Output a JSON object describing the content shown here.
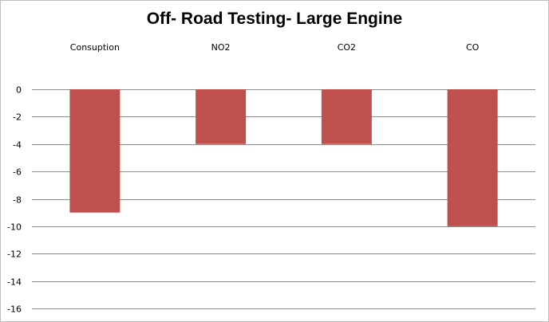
{
  "chart_data": {
    "type": "bar",
    "title": "Off- Road Testing- Large Engine",
    "xlabel": "",
    "ylabel": "",
    "categories": [
      "Consuption",
      "NO2",
      "CO2",
      "CO"
    ],
    "values": [
      -9,
      -4,
      -4,
      -10
    ],
    "ylim": [
      -16,
      0
    ],
    "yticks": [
      "0",
      "-2",
      "-4",
      "-6",
      "-8",
      "-10",
      "-12",
      "-14",
      "-16"
    ],
    "grid": true,
    "legend": "none",
    "category_axis_position": "top",
    "bar_color": "#c0504d",
    "grid_color": "#8c8c8c"
  }
}
